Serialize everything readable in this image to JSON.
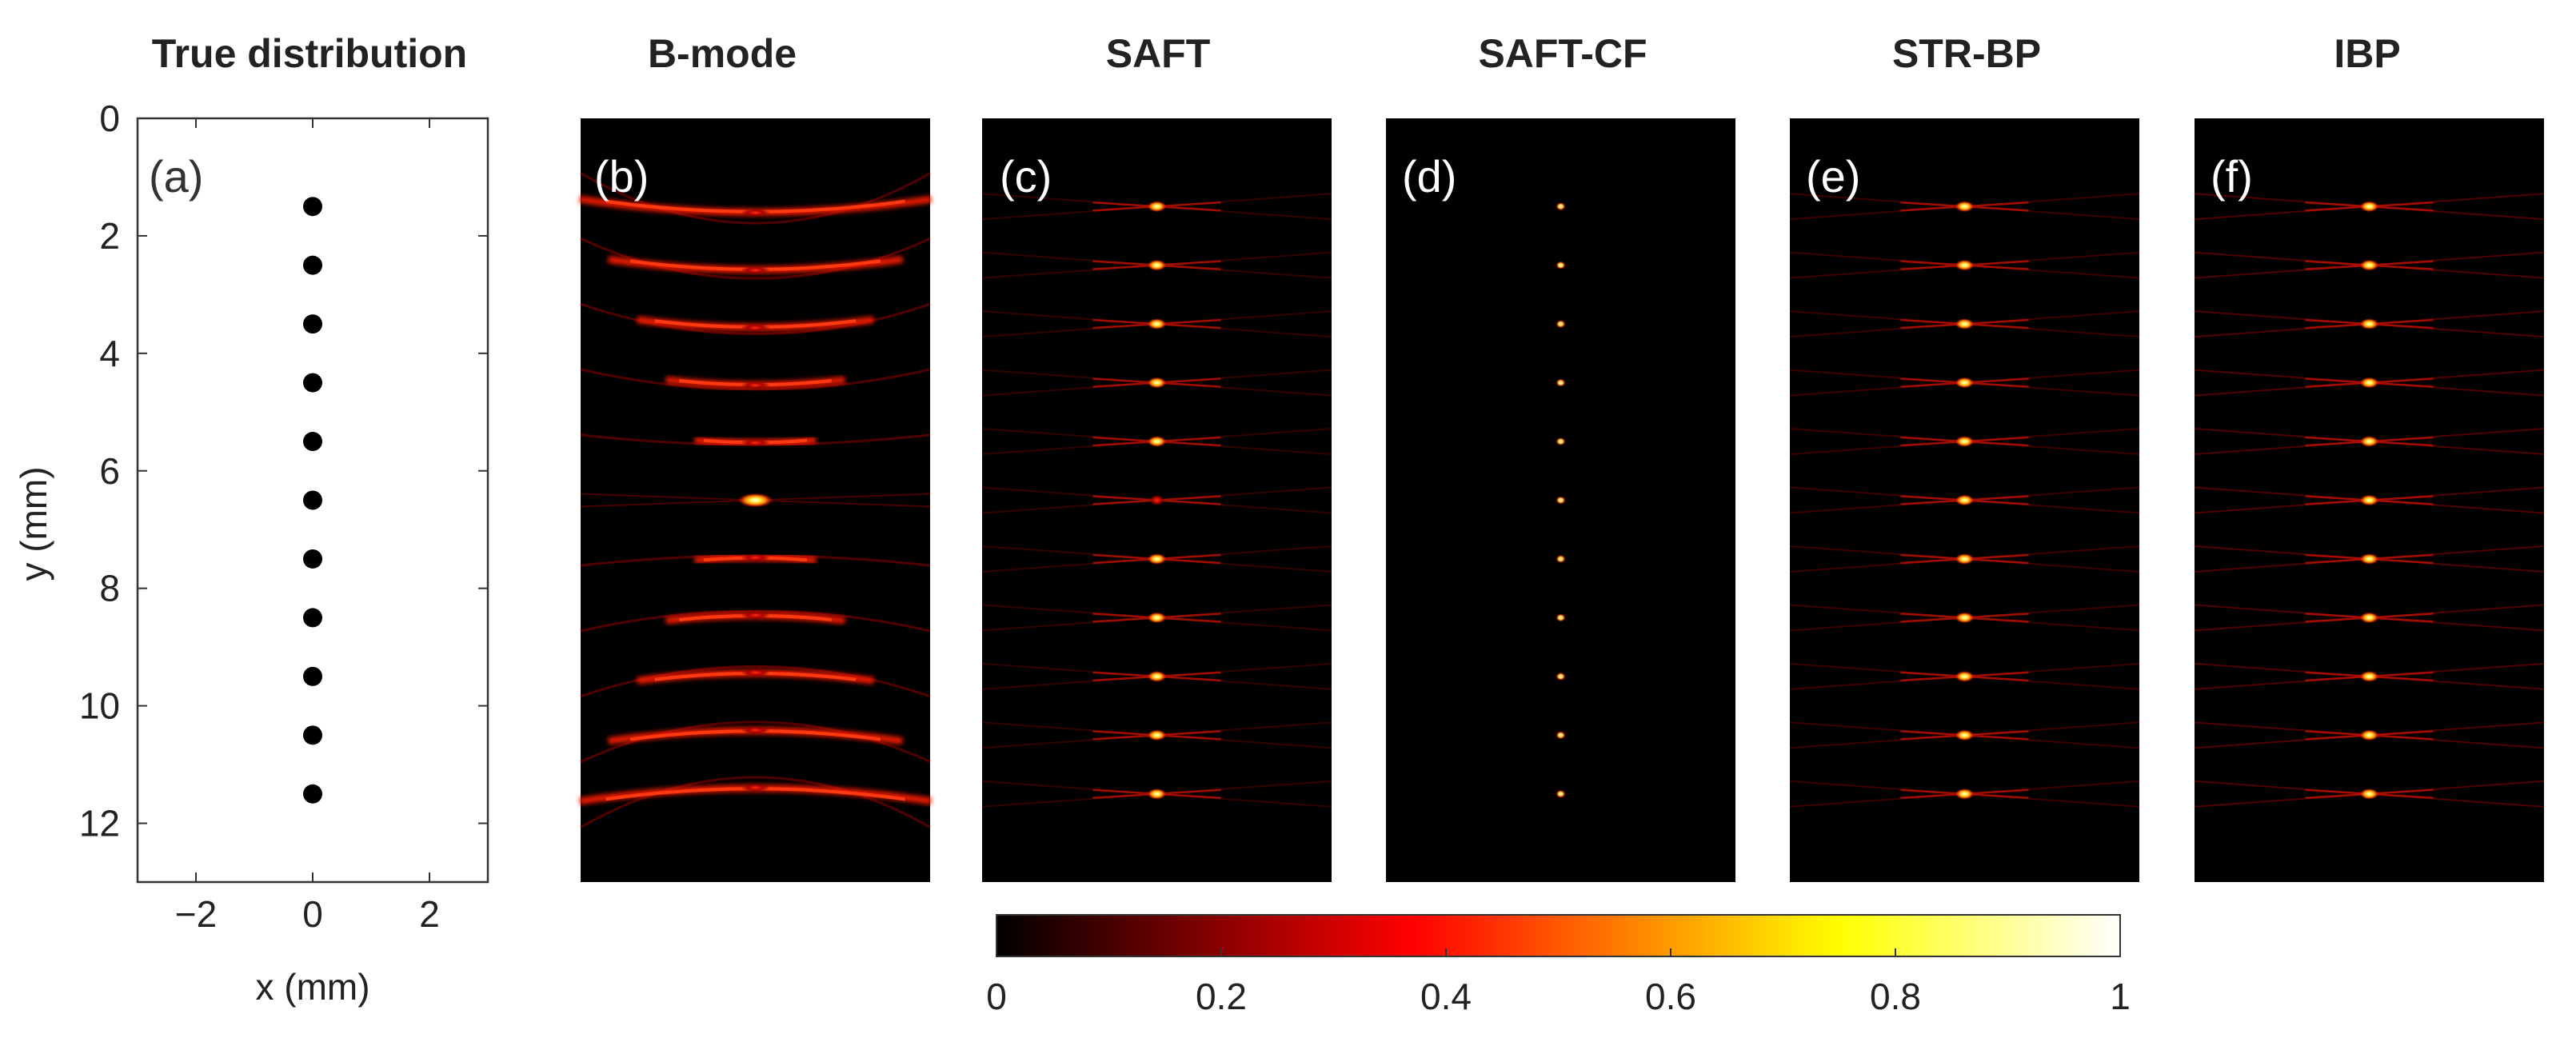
{
  "chart_data": {
    "type": "heatmap",
    "colormap": "hot",
    "panels": [
      {
        "id": "a",
        "title": "True distribution",
        "label": "(a)",
        "kind": "scatter",
        "xlabel": "x (mm)",
        "ylabel": "y (mm)",
        "xlim": [
          -3,
          3
        ],
        "ylim": [
          0,
          13
        ],
        "y_reversed": true,
        "xticks": [
          -2,
          0,
          2
        ],
        "xtick_labels": [
          "−2",
          "0",
          "2"
        ],
        "yticks": [
          0,
          2,
          4,
          6,
          8,
          10,
          12
        ],
        "ytick_labels": [
          "0",
          "2",
          "4",
          "6",
          "8",
          "10",
          "12"
        ],
        "points": [
          {
            "x": 0,
            "y": 1.5
          },
          {
            "x": 0,
            "y": 2.5
          },
          {
            "x": 0,
            "y": 3.5
          },
          {
            "x": 0,
            "y": 4.5
          },
          {
            "x": 0,
            "y": 5.5
          },
          {
            "x": 0,
            "y": 6.5
          },
          {
            "x": 0,
            "y": 7.5
          },
          {
            "x": 0,
            "y": 8.5
          },
          {
            "x": 0,
            "y": 9.5
          },
          {
            "x": 0,
            "y": 10.5
          },
          {
            "x": 0,
            "y": 11.5
          }
        ]
      },
      {
        "id": "b",
        "title": "B-mode",
        "label": "(b)",
        "kind": "bmode",
        "targets_y_mm": [
          1.5,
          2.5,
          3.5,
          4.5,
          5.5,
          6.5,
          7.5,
          8.5,
          9.5,
          10.5,
          11.5
        ]
      },
      {
        "id": "c",
        "title": "SAFT",
        "label": "(c)",
        "kind": "saft",
        "targets_y_mm": [
          1.5,
          2.5,
          3.5,
          4.5,
          5.5,
          6.5,
          7.5,
          8.5,
          9.5,
          10.5,
          11.5
        ]
      },
      {
        "id": "d",
        "title": "SAFT-CF",
        "label": "(d)",
        "kind": "saftcf",
        "targets_y_mm": [
          1.5,
          2.5,
          3.5,
          4.5,
          5.5,
          6.5,
          7.5,
          8.5,
          9.5,
          10.5,
          11.5
        ]
      },
      {
        "id": "e",
        "title": "STR-BP",
        "label": "(e)",
        "kind": "strbp",
        "targets_y_mm": [
          1.5,
          2.5,
          3.5,
          4.5,
          5.5,
          6.5,
          7.5,
          8.5,
          9.5,
          10.5,
          11.5
        ]
      },
      {
        "id": "f",
        "title": "IBP",
        "label": "(f)",
        "kind": "ibp",
        "targets_y_mm": [
          1.5,
          2.5,
          3.5,
          4.5,
          5.5,
          6.5,
          7.5,
          8.5,
          9.5,
          10.5,
          11.5
        ]
      }
    ],
    "colorbar": {
      "range": [
        0,
        1
      ],
      "ticks": [
        0,
        0.2,
        0.4,
        0.6,
        0.8,
        1
      ],
      "tick_labels": [
        "0",
        "0.2",
        "0.4",
        "0.6",
        "0.8",
        "1"
      ]
    }
  }
}
